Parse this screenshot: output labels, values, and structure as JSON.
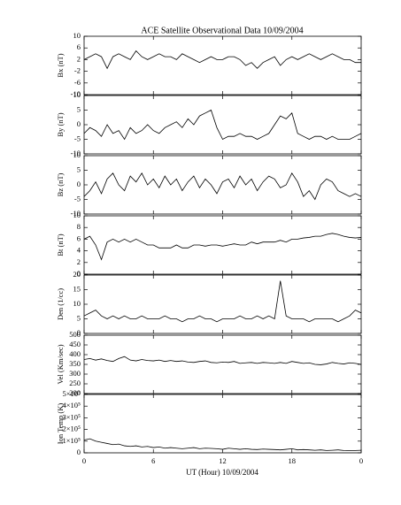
{
  "chart_data": {
    "type": "line",
    "title": "ACE Satellite Observational Data   10/09/2004",
    "xlabel": "UT (Hour)   10/09/2004",
    "xlim": [
      0,
      24
    ],
    "xticks": [
      0,
      6,
      12,
      18,
      {
        "value": 24,
        "label": "0"
      }
    ],
    "x": [
      0,
      0.5,
      1,
      1.5,
      2,
      2.5,
      3,
      3.5,
      4,
      4.5,
      5,
      5.5,
      6,
      6.5,
      7,
      7.5,
      8,
      8.5,
      9,
      9.5,
      10,
      10.5,
      11,
      11.5,
      12,
      12.5,
      13,
      13.5,
      14,
      14.5,
      15,
      15.5,
      16,
      16.5,
      17,
      17.5,
      18,
      18.5,
      19,
      19.5,
      20,
      20.5,
      21,
      21.5,
      22,
      22.5,
      23,
      23.5,
      24
    ],
    "panels": [
      {
        "ylabel": "Bx (nT)",
        "ylim": [
          -10,
          10
        ],
        "yticks": [
          -10,
          -6,
          -2,
          2,
          6,
          10
        ],
        "values": [
          2,
          3,
          4,
          3,
          -1,
          3,
          4,
          3,
          2,
          5,
          3,
          2,
          3,
          4,
          3,
          3,
          2,
          4,
          3,
          2,
          1,
          2,
          3,
          2,
          2,
          3,
          3,
          2,
          0,
          1,
          -1,
          1,
          2,
          3,
          0,
          2,
          3,
          2,
          3,
          4,
          3,
          2,
          3,
          4,
          3,
          2,
          2,
          1,
          1
        ]
      },
      {
        "ylabel": "By (nT)",
        "ylim": [
          -10,
          10
        ],
        "yticks": [
          -10,
          -5,
          0,
          5,
          10
        ],
        "values": [
          -3,
          -1,
          -2,
          -4,
          0,
          -3,
          -2,
          -5,
          -1,
          -3,
          -2,
          0,
          -2,
          -3,
          -1,
          0,
          1,
          -1,
          2,
          0,
          3,
          4,
          5,
          -1,
          -5,
          -4,
          -4,
          -3,
          -4,
          -4,
          -5,
          -4,
          -3,
          0,
          3,
          2,
          4,
          -3,
          -4,
          -5,
          -4,
          -4,
          -5,
          -4,
          -5,
          -5,
          -5,
          -4,
          -3
        ]
      },
      {
        "ylabel": "Bz (nT)",
        "ylim": [
          -10,
          10
        ],
        "yticks": [
          -10,
          -5,
          0,
          5,
          10
        ],
        "values": [
          -4,
          -2,
          1,
          -3,
          2,
          4,
          0,
          -2,
          3,
          1,
          4,
          0,
          2,
          -1,
          3,
          0,
          2,
          -2,
          1,
          3,
          -1,
          2,
          0,
          -3,
          1,
          2,
          -1,
          3,
          0,
          2,
          -2,
          1,
          3,
          2,
          -1,
          0,
          4,
          1,
          -4,
          -2,
          -5,
          0,
          2,
          1,
          -2,
          -3,
          -4,
          -3,
          -4
        ]
      },
      {
        "ylabel": "Bt (nT)",
        "ylim": [
          0,
          10
        ],
        "yticks": [
          0,
          2,
          4,
          6,
          8,
          10
        ],
        "values": [
          6,
          6.5,
          5,
          2.5,
          5.5,
          6,
          5.5,
          6,
          5.5,
          6,
          5.5,
          5,
          5,
          4.5,
          4.5,
          4.5,
          5,
          4.5,
          4.5,
          5,
          5,
          4.8,
          5,
          5,
          4.8,
          5,
          5.2,
          5,
          5,
          5.5,
          5.2,
          5.5,
          5.5,
          5.5,
          5.8,
          5.5,
          6,
          6,
          6.2,
          6.3,
          6.5,
          6.5,
          6.8,
          7,
          6.8,
          6.5,
          6.3,
          6.2,
          6.3
        ]
      },
      {
        "ylabel": "Den (1/cc)",
        "ylim": [
          0,
          20
        ],
        "yticks": [
          0,
          5,
          10,
          15,
          20
        ],
        "values": [
          6,
          7,
          8,
          6,
          5,
          6,
          5,
          6,
          5,
          5,
          6,
          5,
          5,
          5,
          6,
          5,
          5,
          4,
          5,
          5,
          6,
          5,
          5,
          4,
          5,
          5,
          5,
          6,
          5,
          5,
          6,
          5,
          6,
          5,
          18,
          6,
          5,
          5,
          5,
          4,
          5,
          5,
          5,
          5,
          4,
          5,
          6,
          8,
          7
        ]
      },
      {
        "ylabel": "Vel (Km/sec)",
        "ylim": [
          200,
          500
        ],
        "yticks": [
          200,
          250,
          300,
          350,
          400,
          450,
          500
        ],
        "values": [
          375,
          380,
          372,
          378,
          370,
          365,
          380,
          390,
          372,
          368,
          375,
          370,
          368,
          372,
          365,
          370,
          365,
          368,
          362,
          360,
          365,
          368,
          360,
          358,
          362,
          360,
          365,
          355,
          358,
          360,
          355,
          360,
          358,
          355,
          360,
          355,
          365,
          360,
          355,
          358,
          350,
          348,
          352,
          360,
          355,
          352,
          358,
          355,
          350
        ]
      },
      {
        "ylabel": "Ion Temp (K)",
        "ylim": [
          0,
          500000
        ],
        "yticks": [
          {
            "value": 0,
            "label": "0"
          },
          {
            "value": 100000,
            "label": "1×10⁵"
          },
          {
            "value": 200000,
            "label": "2×10⁵"
          },
          {
            "value": 300000,
            "label": "3×10⁵"
          },
          {
            "value": 400000,
            "label": "4×10⁵"
          },
          {
            "value": 500000,
            "label": "5×10⁵"
          }
        ],
        "values": [
          110000,
          120000,
          100000,
          90000,
          80000,
          70000,
          75000,
          60000,
          55000,
          60000,
          50000,
          55000,
          45000,
          50000,
          40000,
          45000,
          40000,
          35000,
          40000,
          45000,
          35000,
          40000,
          38000,
          35000,
          30000,
          40000,
          35000,
          30000,
          35000,
          30000,
          28000,
          32000,
          30000,
          28000,
          25000,
          30000,
          35000,
          25000,
          28000,
          25000,
          22000,
          25000,
          20000,
          22000,
          25000,
          20000,
          18000,
          20000,
          22000
        ]
      }
    ]
  }
}
